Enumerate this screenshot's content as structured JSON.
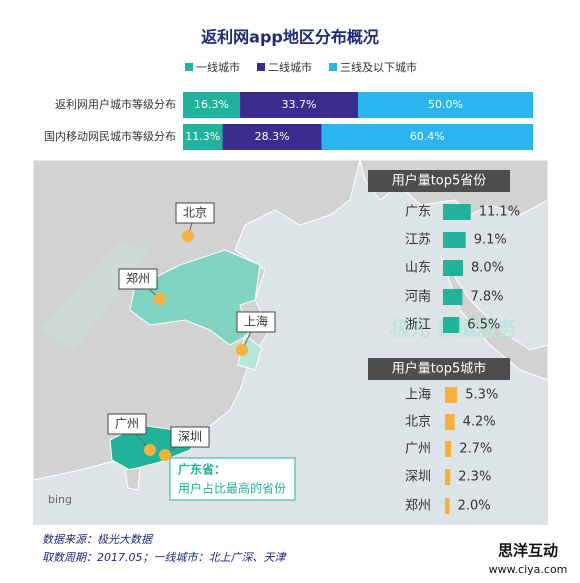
{
  "chart_data": [
    {
      "type": "stacked-bar",
      "title": "返利网app地区分布概况",
      "categories": [
        "返利网用户城市等级分布",
        "国内移动网民城市等级分布"
      ],
      "series": [
        {
          "name": "一线城市",
          "color": "#1fb39b",
          "values": [
            16.3,
            11.3
          ],
          "value_labels": [
            "16.3%",
            "11.3%"
          ]
        },
        {
          "name": "二线城市",
          "color": "#3a2c8c",
          "values": [
            33.7,
            28.3
          ],
          "value_labels": [
            "33.7%",
            "28.3%"
          ]
        },
        {
          "name": "三线及以下城市",
          "color": "#2ab5ee",
          "values": [
            50.0,
            60.4
          ],
          "value_labels": [
            "50.0%",
            "60.4%"
          ]
        }
      ]
    },
    {
      "type": "bar",
      "title": "用户量top5省份",
      "color": "#21b39a",
      "categories": [
        "广东",
        "江苏",
        "山东",
        "河南",
        "浙江"
      ],
      "values": [
        11.1,
        9.1,
        8.0,
        7.8,
        6.5
      ],
      "value_labels": [
        "11.1%",
        "9.1%",
        "8.0%",
        "7.8%",
        "6.5%"
      ]
    },
    {
      "type": "bar",
      "title": "用户量top5城市",
      "color": "#f5b13f",
      "categories": [
        "上海",
        "北京",
        "广州",
        "深圳",
        "郑州"
      ],
      "values": [
        5.3,
        4.2,
        2.7,
        2.3,
        2.0
      ],
      "value_labels": [
        "5.3%",
        "4.2%",
        "2.7%",
        "2.3%",
        "2.0%"
      ]
    }
  ],
  "map": {
    "labels": [
      "北京",
      "郑州",
      "上海",
      "广州",
      "深圳"
    ],
    "callout_title": "广东省：",
    "callout_text": "用户占比最高的省份",
    "attribution": "bing",
    "watermark": "极光 数据服务"
  },
  "footer": {
    "source": "数据来源：极光大数据",
    "period": "取数周期：2017.05；一线城市：北上广深、天津"
  },
  "logo": {
    "name": "思洋互动",
    "url": "www.ciya.com"
  }
}
